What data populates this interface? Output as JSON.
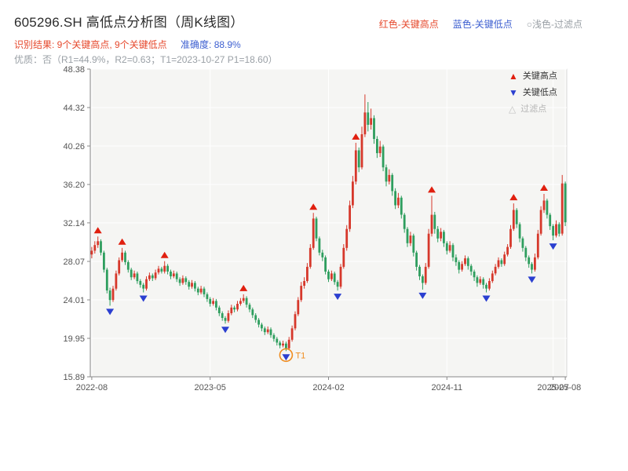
{
  "header": {
    "title": "605296.SH 高低点分析图（周K线图）",
    "legend_high": "红色-关键高点",
    "legend_low": "蓝色-关键低点",
    "legend_filtered": "○浅色-过滤点",
    "result_line": "识别结果: 9个关键高点, 9个关键低点",
    "accuracy_line": "准确度: 88.9%",
    "quality_line": "优质：否（R1=44.9%，R2=0.63；T1=2023-10-27 P1=18.60）"
  },
  "colors": {
    "up": "#d6382b",
    "down": "#2e9e5e",
    "key_high": "#e01f0f",
    "key_low": "#2b3fd0",
    "filtered": "#c4c4c4",
    "t1": "#f08c1e",
    "panel": "#f5f5f3",
    "grid": "#ffffff",
    "frame": "#d9d9d9",
    "axis": "#888888",
    "accent_red": "#e6492d",
    "accent_blue": "#3d5fd0"
  },
  "chart_data": {
    "type": "candlestick",
    "title": "605296.SH 高低点分析图（周K线图）",
    "xlabel": "",
    "ylabel": "",
    "ylim": [
      15.89,
      48.38
    ],
    "grid": true,
    "y_ticks": [
      "48.38",
      "44.32",
      "40.26",
      "36.20",
      "32.14",
      "28.07",
      "24.01",
      "19.95",
      "15.89"
    ],
    "x_ticks": [
      {
        "week": 0,
        "label": "2022-08"
      },
      {
        "week": 39,
        "label": "2023-05"
      },
      {
        "week": 78,
        "label": "2024-02"
      },
      {
        "week": 117,
        "label": "2024-11"
      },
      {
        "week": 152,
        "label": "2025-07"
      },
      {
        "week": 156,
        "label": "2025-08"
      }
    ],
    "legend": [
      {
        "glyph": "▲",
        "label": "关键高点"
      },
      {
        "glyph": "▼",
        "label": "关键低点"
      },
      {
        "glyph": "△",
        "label": "过滤点"
      }
    ],
    "key_high_weeks": [
      2,
      10,
      24,
      50,
      73,
      87,
      112,
      139,
      149
    ],
    "key_low_weeks": [
      6,
      17,
      44,
      64,
      81,
      109,
      130,
      145,
      152
    ],
    "t1": {
      "week": 64,
      "label": "T1",
      "date": "2023-10-27",
      "price": 18.6
    },
    "candles": [
      [
        28.8,
        29.6,
        28.4,
        29.2
      ],
      [
        29.2,
        30.2,
        28.9,
        29.8
      ],
      [
        29.8,
        30.7,
        29.5,
        30.2
      ],
      [
        30.2,
        30.4,
        28.7,
        29.0
      ],
      [
        29.0,
        29.2,
        26.9,
        27.2
      ],
      [
        27.2,
        27.4,
        24.7,
        25.0
      ],
      [
        25.0,
        25.3,
        23.4,
        24.0
      ],
      [
        24.0,
        25.5,
        23.8,
        25.2
      ],
      [
        25.2,
        27.1,
        25.0,
        26.8
      ],
      [
        26.8,
        28.5,
        26.6,
        28.2
      ],
      [
        28.2,
        29.5,
        28.0,
        29.0
      ],
      [
        29.0,
        29.2,
        27.7,
        28.0
      ],
      [
        28.0,
        28.2,
        26.9,
        27.2
      ],
      [
        27.2,
        27.4,
        26.1,
        26.4
      ],
      [
        26.4,
        27.1,
        26.2,
        26.8
      ],
      [
        26.8,
        27.0,
        25.7,
        26.0
      ],
      [
        26.0,
        26.2,
        25.3,
        25.6
      ],
      [
        25.6,
        25.8,
        24.8,
        25.2
      ],
      [
        25.2,
        26.5,
        25.0,
        26.2
      ],
      [
        26.2,
        26.9,
        26.0,
        26.6
      ],
      [
        26.6,
        26.8,
        26.0,
        26.3
      ],
      [
        26.3,
        27.2,
        26.1,
        26.9
      ],
      [
        26.9,
        27.6,
        26.7,
        27.3
      ],
      [
        27.3,
        27.5,
        26.8,
        27.0
      ],
      [
        27.0,
        28.1,
        26.8,
        27.6
      ],
      [
        27.6,
        27.8,
        26.7,
        27.0
      ],
      [
        27.0,
        27.2,
        26.2,
        26.5
      ],
      [
        26.5,
        27.1,
        26.3,
        26.8
      ],
      [
        26.8,
        27.0,
        25.9,
        26.2
      ],
      [
        26.2,
        26.4,
        25.5,
        25.8
      ],
      [
        25.8,
        26.6,
        25.6,
        26.3
      ],
      [
        26.3,
        26.5,
        25.6,
        25.9
      ],
      [
        25.9,
        26.1,
        25.1,
        25.4
      ],
      [
        25.4,
        26.1,
        25.2,
        25.8
      ],
      [
        25.8,
        26.0,
        24.9,
        25.2
      ],
      [
        25.2,
        25.4,
        24.5,
        24.8
      ],
      [
        24.8,
        25.5,
        24.6,
        25.2
      ],
      [
        25.2,
        25.4,
        24.3,
        24.6
      ],
      [
        24.6,
        24.8,
        23.8,
        24.1
      ],
      [
        24.1,
        24.3,
        23.3,
        23.6
      ],
      [
        23.6,
        24.2,
        23.4,
        23.9
      ],
      [
        23.9,
        24.1,
        22.9,
        23.2
      ],
      [
        23.2,
        23.4,
        22.3,
        22.6
      ],
      [
        22.6,
        22.8,
        21.8,
        22.1
      ],
      [
        22.1,
        22.3,
        21.5,
        21.8
      ],
      [
        21.8,
        22.9,
        21.6,
        22.6
      ],
      [
        22.6,
        23.5,
        22.4,
        23.2
      ],
      [
        23.2,
        23.4,
        22.7,
        23.0
      ],
      [
        23.0,
        23.9,
        22.8,
        23.6
      ],
      [
        23.6,
        24.2,
        23.4,
        23.9
      ],
      [
        23.9,
        24.6,
        23.7,
        24.2
      ],
      [
        24.2,
        24.4,
        23.2,
        23.5
      ],
      [
        23.5,
        23.7,
        22.7,
        23.0
      ],
      [
        23.0,
        23.2,
        22.1,
        22.4
      ],
      [
        22.4,
        22.6,
        21.6,
        21.9
      ],
      [
        21.9,
        22.1,
        21.1,
        21.4
      ],
      [
        21.4,
        21.6,
        20.7,
        21.0
      ],
      [
        21.0,
        21.2,
        20.3,
        20.6
      ],
      [
        20.6,
        21.2,
        20.4,
        20.9
      ],
      [
        20.9,
        21.1,
        20.0,
        20.3
      ],
      [
        20.3,
        20.5,
        19.6,
        19.9
      ],
      [
        19.9,
        20.1,
        19.2,
        19.5
      ],
      [
        19.5,
        19.7,
        18.9,
        19.2
      ],
      [
        19.2,
        19.7,
        19.0,
        19.4
      ],
      [
        19.4,
        19.6,
        18.6,
        18.9
      ],
      [
        18.9,
        20.1,
        18.7,
        19.8
      ],
      [
        19.8,
        21.3,
        19.6,
        21.0
      ],
      [
        21.0,
        22.8,
        20.8,
        22.5
      ],
      [
        22.5,
        24.3,
        22.3,
        24.0
      ],
      [
        24.0,
        25.9,
        23.8,
        25.5
      ],
      [
        25.5,
        26.4,
        25.2,
        26.0
      ],
      [
        26.0,
        27.9,
        25.8,
        27.5
      ],
      [
        27.5,
        29.9,
        27.3,
        29.5
      ],
      [
        29.5,
        33.2,
        29.3,
        32.6
      ],
      [
        32.6,
        32.8,
        30.2,
        30.5
      ],
      [
        30.5,
        30.7,
        28.7,
        29.0
      ],
      [
        29.0,
        29.3,
        28.1,
        28.5
      ],
      [
        28.5,
        28.7,
        26.7,
        27.0
      ],
      [
        27.0,
        27.2,
        25.9,
        26.2
      ],
      [
        26.2,
        27.1,
        26.0,
        26.8
      ],
      [
        26.8,
        27.0,
        25.6,
        25.9
      ],
      [
        25.9,
        26.1,
        25.0,
        25.4
      ],
      [
        25.4,
        27.8,
        25.2,
        27.5
      ],
      [
        27.5,
        29.9,
        27.3,
        29.5
      ],
      [
        29.5,
        31.9,
        29.2,
        31.5
      ],
      [
        31.5,
        34.5,
        31.2,
        34.0
      ],
      [
        34.0,
        37.1,
        33.7,
        36.5
      ],
      [
        36.5,
        40.6,
        36.2,
        39.8
      ],
      [
        39.8,
        40.1,
        37.5,
        38.0
      ],
      [
        38.0,
        42.3,
        37.8,
        41.5
      ],
      [
        41.5,
        45.7,
        41.2,
        43.8
      ],
      [
        43.8,
        44.9,
        41.8,
        42.5
      ],
      [
        42.5,
        44.2,
        42.0,
        43.2
      ],
      [
        43.2,
        43.5,
        40.5,
        41.0
      ],
      [
        41.0,
        41.3,
        39.0,
        39.5
      ],
      [
        39.5,
        40.8,
        39.1,
        40.2
      ],
      [
        40.2,
        40.4,
        37.6,
        38.0
      ],
      [
        38.0,
        38.3,
        36.0,
        36.5
      ],
      [
        36.5,
        37.8,
        36.2,
        37.2
      ],
      [
        37.2,
        37.4,
        35.0,
        35.5
      ],
      [
        35.5,
        35.8,
        33.6,
        34.0
      ],
      [
        34.0,
        35.3,
        33.7,
        34.8
      ],
      [
        34.8,
        35.0,
        32.6,
        33.0
      ],
      [
        33.0,
        33.2,
        31.1,
        31.5
      ],
      [
        31.5,
        31.7,
        29.6,
        30.0
      ],
      [
        30.0,
        31.2,
        29.7,
        30.8
      ],
      [
        30.8,
        31.0,
        28.6,
        29.0
      ],
      [
        29.0,
        29.2,
        27.1,
        27.5
      ],
      [
        27.5,
        27.7,
        26.1,
        26.5
      ],
      [
        26.5,
        26.7,
        25.1,
        25.8
      ],
      [
        25.8,
        27.9,
        25.6,
        27.5
      ],
      [
        27.5,
        31.5,
        27.3,
        31.0
      ],
      [
        31.0,
        35.0,
        30.7,
        33.0
      ],
      [
        33.0,
        33.3,
        31.0,
        31.5
      ],
      [
        31.5,
        31.8,
        30.1,
        30.5
      ],
      [
        30.5,
        31.6,
        30.2,
        31.2
      ],
      [
        31.2,
        31.4,
        29.6,
        30.0
      ],
      [
        30.0,
        30.2,
        28.8,
        29.2
      ],
      [
        29.2,
        30.2,
        29.0,
        29.8
      ],
      [
        29.8,
        30.0,
        28.1,
        28.5
      ],
      [
        28.5,
        28.8,
        27.6,
        28.0
      ],
      [
        28.0,
        28.2,
        26.8,
        27.2
      ],
      [
        27.2,
        28.1,
        27.0,
        27.8
      ],
      [
        27.8,
        28.7,
        27.6,
        28.4
      ],
      [
        28.4,
        28.6,
        27.2,
        27.6
      ],
      [
        27.6,
        27.8,
        26.6,
        27.0
      ],
      [
        27.0,
        27.2,
        26.0,
        26.4
      ],
      [
        26.4,
        26.6,
        25.4,
        25.8
      ],
      [
        25.8,
        26.5,
        25.6,
        26.2
      ],
      [
        26.2,
        26.4,
        25.2,
        25.6
      ],
      [
        25.6,
        25.8,
        24.8,
        25.2
      ],
      [
        25.2,
        26.3,
        25.0,
        26.0
      ],
      [
        26.0,
        27.1,
        25.8,
        26.8
      ],
      [
        26.8,
        27.8,
        26.6,
        27.5
      ],
      [
        27.5,
        28.5,
        27.3,
        28.2
      ],
      [
        28.2,
        28.4,
        27.5,
        27.8
      ],
      [
        27.8,
        29.1,
        27.6,
        28.8
      ],
      [
        28.8,
        29.9,
        28.6,
        29.6
      ],
      [
        29.6,
        31.9,
        29.4,
        31.5
      ],
      [
        31.5,
        34.2,
        31.3,
        33.5
      ],
      [
        33.5,
        33.7,
        31.6,
        32.0
      ],
      [
        32.0,
        32.2,
        30.1,
        30.5
      ],
      [
        30.5,
        30.7,
        29.1,
        29.5
      ],
      [
        29.5,
        29.7,
        28.1,
        28.5
      ],
      [
        28.5,
        28.7,
        27.4,
        27.8
      ],
      [
        27.8,
        28.0,
        26.8,
        27.2
      ],
      [
        27.2,
        28.9,
        27.0,
        28.5
      ],
      [
        28.5,
        31.4,
        28.3,
        31.0
      ],
      [
        31.0,
        33.9,
        30.8,
        33.5
      ],
      [
        33.5,
        35.2,
        33.2,
        34.5
      ],
      [
        34.5,
        34.7,
        32.6,
        33.0
      ],
      [
        33.0,
        33.2,
        31.4,
        31.8
      ],
      [
        31.8,
        32.0,
        30.3,
        30.8
      ],
      [
        30.8,
        32.4,
        30.6,
        32.0
      ],
      [
        32.0,
        32.2,
        30.7,
        31.0
      ],
      [
        31.0,
        37.2,
        30.8,
        36.3
      ],
      [
        36.3,
        36.5,
        31.8,
        32.2
      ]
    ]
  }
}
